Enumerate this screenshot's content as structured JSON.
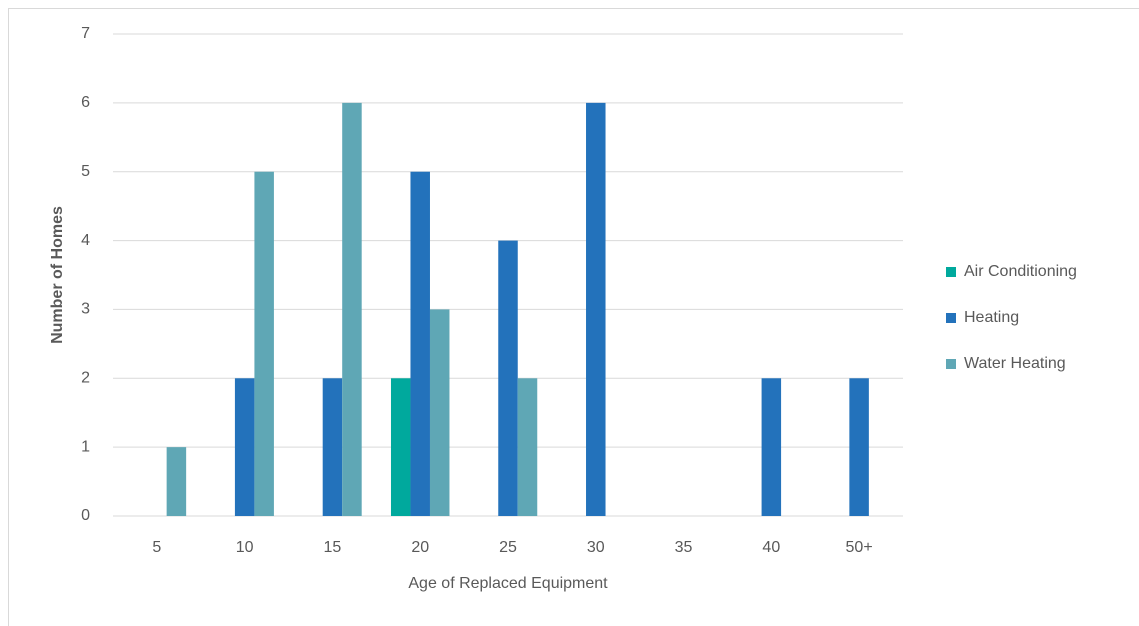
{
  "chart_data": {
    "type": "bar",
    "x_label": "Age of Replaced Equipment",
    "y_label": "Number of Homes",
    "categories": [
      "5",
      "10",
      "15",
      "20",
      "25",
      "30",
      "35",
      "40",
      "50+"
    ],
    "series": [
      {
        "name": "Air Conditioning",
        "color": "#00a99d",
        "values": [
          0,
          0,
          0,
          2,
          0,
          0,
          0,
          0,
          0
        ]
      },
      {
        "name": "Heating",
        "color": "#2372bb",
        "values": [
          0,
          2,
          2,
          5,
          4,
          6,
          0,
          2,
          2
        ]
      },
      {
        "name": "Water Heating",
        "color": "#5fa7b5",
        "values": [
          1,
          5,
          6,
          3,
          2,
          0,
          0,
          0,
          0
        ]
      }
    ],
    "ylim": [
      0,
      7
    ],
    "yticks": [
      0,
      1,
      2,
      3,
      4,
      5,
      6,
      7
    ],
    "grid": true,
    "legend": "right"
  }
}
